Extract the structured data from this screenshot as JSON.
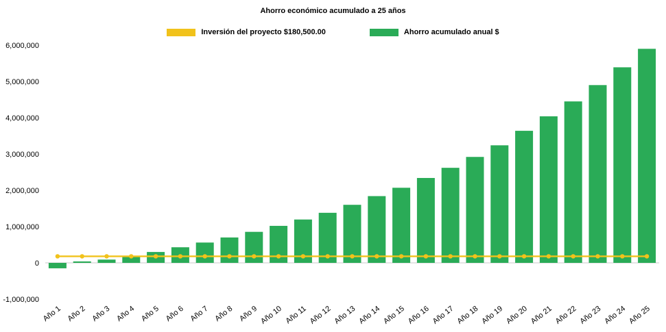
{
  "page": {
    "background": "#ffffff"
  },
  "chart_data": {
    "type": "bar",
    "title": "Ahorro económico acumulado a 25 años",
    "xlabel": "",
    "ylabel": "",
    "ylim": [
      -1000000,
      6000000
    ],
    "ytick_step": 1000000,
    "grid": false,
    "legend_position": "top",
    "categories": [
      "Año 1",
      "Año 2",
      "Año 3",
      "Año 4",
      "Año 5",
      "Año 6",
      "Año 7",
      "Año 8",
      "Año 9",
      "Año 10",
      "Año 11",
      "Año 12",
      "Año 13",
      "Año 14",
      "Año 15",
      "Año 16",
      "Año 17",
      "Año 18",
      "Año 19",
      "Año 20",
      "Año 21",
      "Año 22",
      "Año 23",
      "Año 24",
      "Año 25"
    ],
    "series": [
      {
        "name": "Inversión del proyecto $180,500.00",
        "type": "line",
        "color": "#f1c21b",
        "marker": "circle",
        "values": [
          180500,
          180500,
          180500,
          180500,
          180500,
          180500,
          180500,
          180500,
          180500,
          180500,
          180500,
          180500,
          180500,
          180500,
          180500,
          180500,
          180500,
          180500,
          180500,
          180500,
          180500,
          180500,
          180500,
          180500,
          180500
        ]
      },
      {
        "name": "Ahorro acumulado anual $",
        "type": "bar",
        "color": "#2aab57",
        "values": [
          -150000,
          40000,
          90000,
          190000,
          300000,
          430000,
          560000,
          700000,
          855000,
          1020000,
          1195000,
          1380000,
          1600000,
          1840000,
          2070000,
          2340000,
          2620000,
          2920000,
          3240000,
          3640000,
          4040000,
          4450000,
          4900000,
          5390000,
          5900000
        ]
      }
    ]
  }
}
